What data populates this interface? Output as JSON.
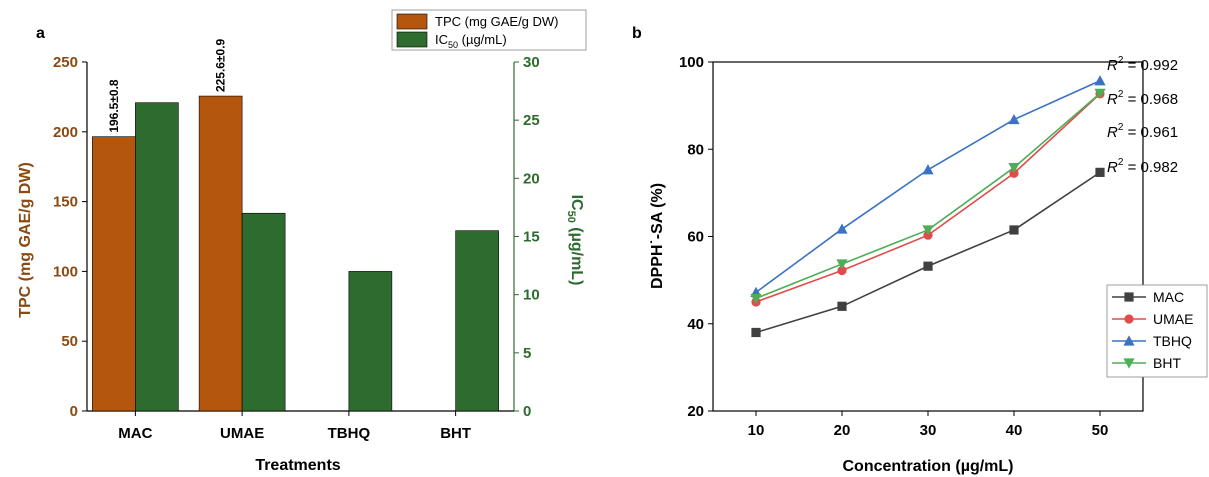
{
  "chart_data": [
    {
      "panel_label": "a",
      "type": "bar",
      "categories": [
        "MAC",
        "UMAE",
        "TBHQ",
        "BHT"
      ],
      "xlabel": "Treatments",
      "ylabel_left": "TPC (mg GAE/g DW)",
      "ylabel_right": "IC50 (µg/mL)",
      "ylim_left": [
        0,
        250
      ],
      "ylim_right": [
        0,
        30
      ],
      "yticks_left": [
        "0",
        "50",
        "100",
        "150",
        "200",
        "250"
      ],
      "yticks_right": [
        "0",
        "5",
        "10",
        "15",
        "20",
        "25",
        "30"
      ],
      "legend_position": "top-right",
      "series": [
        {
          "name": "TPC (mg GAE/g DW)",
          "axis": "left",
          "color": "#b5560e",
          "values": [
            196.5,
            225.6,
            null,
            null
          ],
          "labels": [
            "196.5±0.8",
            "225.6±0.9",
            "",
            ""
          ]
        },
        {
          "name": "IC50 (µg/mL)",
          "axis": "right",
          "color": "#2e6b2e",
          "values": [
            26.5,
            17.0,
            12.0,
            15.5
          ]
        }
      ]
    },
    {
      "panel_label": "b",
      "type": "line",
      "x": [
        10,
        20,
        30,
        40,
        50
      ],
      "xticks": [
        "10",
        "20",
        "30",
        "40",
        "50"
      ],
      "xlabel": "Concentration (µg/mL)",
      "ylabel": "DPPH˙-SA (%)",
      "xlim": [
        5,
        55
      ],
      "ylim": [
        20,
        100
      ],
      "yticks": [
        "20",
        "40",
        "60",
        "80",
        "100"
      ],
      "legend_position": "bottom-right",
      "series": [
        {
          "name": "MAC",
          "color": "#404040",
          "marker": "square",
          "values": [
            38.0,
            44.0,
            53.2,
            61.5,
            74.7
          ],
          "r2": "0.982"
        },
        {
          "name": "UMAE",
          "color": "#e24b4b",
          "marker": "circle",
          "values": [
            45.0,
            52.2,
            60.3,
            74.5,
            92.7
          ],
          "r2": "0.961"
        },
        {
          "name": "TBHQ",
          "color": "#3a73c4",
          "marker": "triangle-up",
          "values": [
            47.2,
            61.7,
            75.3,
            86.8,
            95.7
          ],
          "r2": "0.992"
        },
        {
          "name": "BHT",
          "color": "#4dae57",
          "marker": "triangle-down",
          "values": [
            45.8,
            53.7,
            61.5,
            75.8,
            92.8
          ],
          "r2": "0.968"
        }
      ],
      "r2_prefix": "R",
      "r2_sup": "2",
      "r2_eq": " = "
    }
  ]
}
